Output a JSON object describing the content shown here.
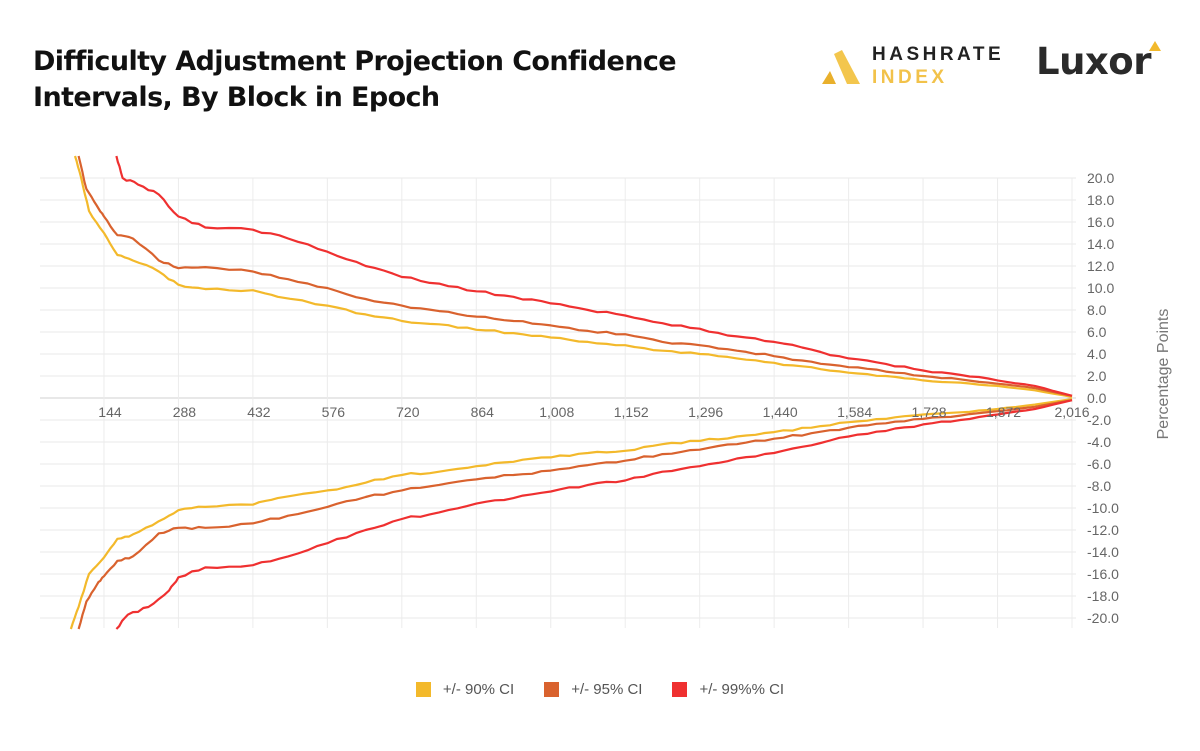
{
  "title": "Difficulty Adjustment Projection Confidence Intervals, By Block in Epoch",
  "logos": {
    "hashrate_index": [
      "HASHRATE",
      "INDEX"
    ],
    "luxor": "Luxor"
  },
  "colors": {
    "ci90": "#f3b92b",
    "ci95": "#d9622e",
    "ci99": "#ef3030",
    "grid": "#e6e6e6",
    "axis_text": "#666666"
  },
  "chart_data": {
    "type": "line",
    "title": "Difficulty Adjustment Projection Confidence Intervals, By Block in Epoch",
    "xlabel": "",
    "ylabel": "Percentage Points",
    "xlim": [
      0,
      2016
    ],
    "ylim": [
      -20,
      20
    ],
    "x_ticks": [
      144,
      288,
      432,
      576,
      720,
      864,
      1008,
      1152,
      1296,
      1440,
      1584,
      1728,
      1872,
      2016
    ],
    "x_tick_labels": [
      "144",
      "288",
      "432",
      "576",
      "720",
      "864",
      "1,008",
      "1,152",
      "1,296",
      "1,440",
      "1,584",
      "1,728",
      "1,872",
      "2,016"
    ],
    "y_ticks": [
      20,
      18,
      16,
      14,
      12,
      10,
      8,
      6,
      4,
      2,
      0,
      -2,
      -4,
      -6,
      -8,
      -10,
      -12,
      -14,
      -16,
      -18,
      -20
    ],
    "y_tick_labels": [
      "20.0",
      "18.0",
      "16.0",
      "14.0",
      "12.0",
      "10.0",
      "8.0",
      "6.0",
      "4.0",
      "2.0",
      "0.0",
      "-2.0",
      "-4.0",
      "-6.0",
      "-8.0",
      "-10.0",
      "-12.0",
      "-14.0",
      "-16.0",
      "-18.0",
      "-20.0"
    ],
    "y_axis_side": "right",
    "grid": true,
    "legend_position": "bottom",
    "series": [
      {
        "name": "+/- 90% CI",
        "color": "#f3b92b",
        "upper": [
          [
            88,
            22
          ],
          [
            100,
            20
          ],
          [
            115,
            17
          ],
          [
            144,
            15
          ],
          [
            170,
            13
          ],
          [
            200,
            12.5
          ],
          [
            250,
            11.5
          ],
          [
            288,
            10.3
          ],
          [
            340,
            9.9
          ],
          [
            432,
            9.8
          ],
          [
            480,
            9.2
          ],
          [
            576,
            8.4
          ],
          [
            650,
            7.6
          ],
          [
            720,
            7.0
          ],
          [
            792,
            6.7
          ],
          [
            864,
            6.2
          ],
          [
            936,
            5.9
          ],
          [
            1008,
            5.5
          ],
          [
            1080,
            5.1
          ],
          [
            1152,
            4.8
          ],
          [
            1224,
            4.3
          ],
          [
            1296,
            4.0
          ],
          [
            1368,
            3.6
          ],
          [
            1440,
            3.2
          ],
          [
            1512,
            2.8
          ],
          [
            1584,
            2.3
          ],
          [
            1656,
            2.0
          ],
          [
            1728,
            1.6
          ],
          [
            1800,
            1.4
          ],
          [
            1872,
            1.1
          ],
          [
            1944,
            0.7
          ],
          [
            2016,
            0.1
          ]
        ],
        "lower": [
          [
            80,
            -21
          ],
          [
            95,
            -19
          ],
          [
            115,
            -16
          ],
          [
            144,
            -14.5
          ],
          [
            170,
            -12.8
          ],
          [
            200,
            -12.4
          ],
          [
            250,
            -11.2
          ],
          [
            288,
            -10.2
          ],
          [
            340,
            -9.9
          ],
          [
            432,
            -9.7
          ],
          [
            480,
            -9.1
          ],
          [
            576,
            -8.4
          ],
          [
            650,
            -7.7
          ],
          [
            720,
            -7.0
          ],
          [
            792,
            -6.7
          ],
          [
            864,
            -6.2
          ],
          [
            936,
            -5.8
          ],
          [
            1008,
            -5.4
          ],
          [
            1080,
            -5.0
          ],
          [
            1152,
            -4.8
          ],
          [
            1224,
            -4.2
          ],
          [
            1296,
            -3.9
          ],
          [
            1368,
            -3.5
          ],
          [
            1440,
            -3.1
          ],
          [
            1512,
            -2.7
          ],
          [
            1584,
            -2.2
          ],
          [
            1656,
            -1.9
          ],
          [
            1728,
            -1.5
          ],
          [
            1800,
            -1.3
          ],
          [
            1872,
            -1.0
          ],
          [
            1944,
            -0.6
          ],
          [
            2016,
            -0.1
          ]
        ]
      },
      {
        "name": "+/- 95% CI",
        "color": "#d9622e",
        "upper": [
          [
            95,
            22
          ],
          [
            110,
            19
          ],
          [
            130,
            17.5
          ],
          [
            144,
            16.5
          ],
          [
            170,
            14.8
          ],
          [
            200,
            14.5
          ],
          [
            250,
            12.5
          ],
          [
            288,
            11.8
          ],
          [
            340,
            11.9
          ],
          [
            432,
            11.5
          ],
          [
            500,
            10.8
          ],
          [
            576,
            10.0
          ],
          [
            650,
            9.0
          ],
          [
            720,
            8.4
          ],
          [
            792,
            7.9
          ],
          [
            864,
            7.4
          ],
          [
            936,
            7.0
          ],
          [
            1008,
            6.6
          ],
          [
            1080,
            6.1
          ],
          [
            1152,
            5.8
          ],
          [
            1224,
            5.1
          ],
          [
            1296,
            4.8
          ],
          [
            1368,
            4.3
          ],
          [
            1440,
            3.8
          ],
          [
            1512,
            3.3
          ],
          [
            1584,
            2.8
          ],
          [
            1656,
            2.4
          ],
          [
            1728,
            2.0
          ],
          [
            1800,
            1.7
          ],
          [
            1872,
            1.3
          ],
          [
            1944,
            0.9
          ],
          [
            2016,
            0.2
          ]
        ],
        "lower": [
          [
            95,
            -21
          ],
          [
            110,
            -18.5
          ],
          [
            130,
            -17
          ],
          [
            144,
            -16.2
          ],
          [
            170,
            -14.8
          ],
          [
            200,
            -14.4
          ],
          [
            250,
            -12.3
          ],
          [
            288,
            -11.8
          ],
          [
            340,
            -11.8
          ],
          [
            432,
            -11.4
          ],
          [
            500,
            -10.7
          ],
          [
            576,
            -9.9
          ],
          [
            650,
            -9.0
          ],
          [
            720,
            -8.4
          ],
          [
            792,
            -7.9
          ],
          [
            864,
            -7.4
          ],
          [
            936,
            -7.0
          ],
          [
            1008,
            -6.6
          ],
          [
            1080,
            -6.1
          ],
          [
            1152,
            -5.7
          ],
          [
            1224,
            -5.1
          ],
          [
            1296,
            -4.7
          ],
          [
            1368,
            -4.2
          ],
          [
            1440,
            -3.7
          ],
          [
            1512,
            -3.2
          ],
          [
            1584,
            -2.7
          ],
          [
            1656,
            -2.3
          ],
          [
            1728,
            -1.9
          ],
          [
            1800,
            -1.6
          ],
          [
            1872,
            -1.2
          ],
          [
            1944,
            -0.8
          ],
          [
            2016,
            -0.2
          ]
        ]
      },
      {
        "name": "+/- 99%% CI",
        "color": "#ef3030",
        "upper": [
          [
            168,
            22
          ],
          [
            180,
            20
          ],
          [
            210,
            19.4
          ],
          [
            250,
            18.5
          ],
          [
            288,
            16.5
          ],
          [
            340,
            15.5
          ],
          [
            432,
            15.3
          ],
          [
            500,
            14.5
          ],
          [
            576,
            13.3
          ],
          [
            650,
            12.0
          ],
          [
            720,
            11.0
          ],
          [
            792,
            10.4
          ],
          [
            864,
            9.7
          ],
          [
            936,
            9.2
          ],
          [
            1008,
            8.6
          ],
          [
            1080,
            8.0
          ],
          [
            1152,
            7.5
          ],
          [
            1224,
            6.8
          ],
          [
            1296,
            6.3
          ],
          [
            1368,
            5.6
          ],
          [
            1440,
            5.1
          ],
          [
            1512,
            4.4
          ],
          [
            1584,
            3.6
          ],
          [
            1656,
            3.1
          ],
          [
            1728,
            2.5
          ],
          [
            1800,
            2.1
          ],
          [
            1872,
            1.6
          ],
          [
            1944,
            1.1
          ],
          [
            2016,
            0.2
          ]
        ],
        "lower": [
          [
            168,
            -21
          ],
          [
            190,
            -19.7
          ],
          [
            230,
            -19
          ],
          [
            270,
            -17.5
          ],
          [
            288,
            -16.3
          ],
          [
            340,
            -15.4
          ],
          [
            432,
            -15.2
          ],
          [
            500,
            -14.4
          ],
          [
            576,
            -13.2
          ],
          [
            650,
            -12.0
          ],
          [
            720,
            -11.0
          ],
          [
            792,
            -10.4
          ],
          [
            864,
            -9.6
          ],
          [
            936,
            -9.1
          ],
          [
            1008,
            -8.5
          ],
          [
            1080,
            -7.9
          ],
          [
            1152,
            -7.5
          ],
          [
            1224,
            -6.7
          ],
          [
            1296,
            -6.2
          ],
          [
            1368,
            -5.5
          ],
          [
            1440,
            -5.0
          ],
          [
            1512,
            -4.3
          ],
          [
            1584,
            -3.5
          ],
          [
            1656,
            -3.0
          ],
          [
            1728,
            -2.4
          ],
          [
            1800,
            -2.0
          ],
          [
            1872,
            -1.5
          ],
          [
            1944,
            -1.0
          ],
          [
            2016,
            -0.2
          ]
        ]
      }
    ]
  }
}
